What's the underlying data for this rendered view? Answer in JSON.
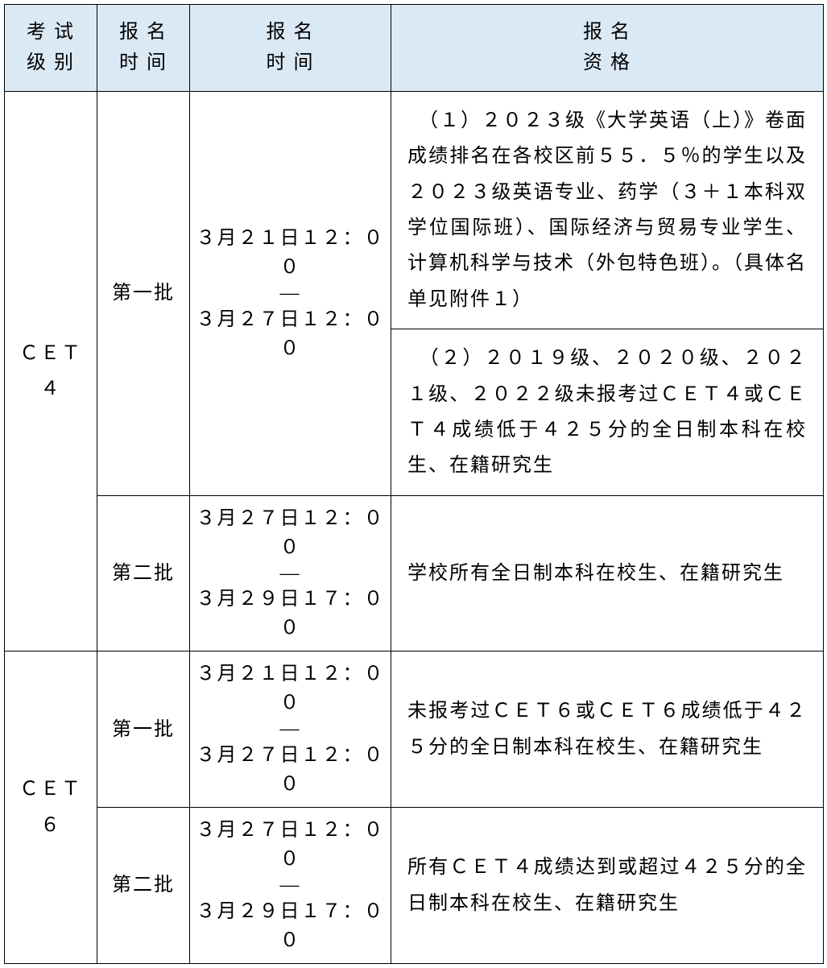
{
  "table": {
    "headers": {
      "exam_level_line1": "考 试",
      "exam_level_line2": "级 别",
      "batch_line1": "报 名",
      "batch_line2": "时 间",
      "time_line1": "报 名",
      "time_line2": "时 间",
      "qual_line1": "报 名",
      "qual_line2": "资 格"
    },
    "rows": {
      "cet4": {
        "level": "ＣＥＴ４",
        "batch1": {
          "batch_label": "第一批",
          "time_start": "３月２１日１２：００",
          "time_dash": "—",
          "time_end": "３月２７日１２：００",
          "qual1": "　（１）２０２３级《大学英语（上）》卷面成绩排名在各校区前５５．５％的学生以及２０２３级英语专业、药学（３＋１本科双学位国际班）、国际经济与贸易专业学生、计算机科学与技术（外包特色班）。（具体名单见附件１）",
          "qual2": "　（２）２０１９级、２０２０级、２０２１级、２０２２级未报考过ＣＥＴ４或ＣＥＴ４成绩低于４２５分的全日制本科在校生、在籍研究生"
        },
        "batch2": {
          "batch_label": "第二批",
          "time_start": "３月２７日１２：００",
          "time_dash": "—",
          "time_end": "３月２９日１７：００",
          "qual": "学校所有全日制本科在校生、在籍研究生"
        }
      },
      "cet6": {
        "level": "ＣＥＴ６",
        "batch1": {
          "batch_label": "第一批",
          "time_start": "３月２１日１２：００",
          "time_dash": "—",
          "time_end": "３月２７日１２：００",
          "qual": "未报考过ＣＥＴ６或ＣＥＴ６成绩低于４２５分的全日制本科在校生、在籍研究生"
        },
        "batch2": {
          "batch_label": "第二批",
          "time_start": "３月２７日１２：００",
          "time_dash": "—",
          "time_end": "３月２９日１７：００",
          "qual": "所有ＣＥＴ４成绩达到或超过４２５分的全日制本科在校生、在籍研究生"
        }
      }
    },
    "colors": {
      "header_bg": "#dbe9f5",
      "border": "#000000",
      "background": "#ffffff",
      "text": "#000000"
    },
    "fonts": {
      "cell_fontsize": 24,
      "line_height": 1.85
    },
    "column_widths": {
      "level": 115,
      "batch": 115,
      "time": 250,
      "qual": 537
    }
  }
}
